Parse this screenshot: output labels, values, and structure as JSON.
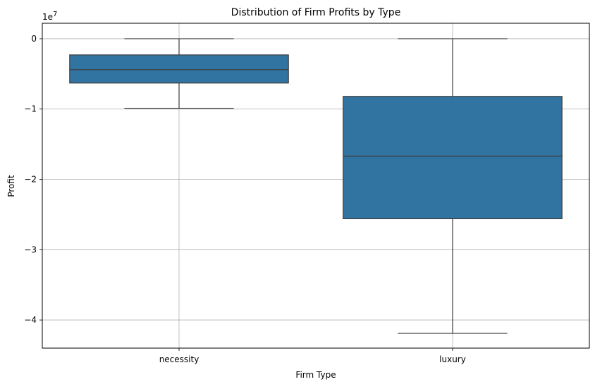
{
  "chart_data": {
    "type": "box",
    "title": "Distribution of Firm Profits by Type",
    "xlabel": "Firm Type",
    "ylabel": "Profit",
    "y_offset_label": "1e7",
    "y_scale": 10000000,
    "ylim": [
      -44000000,
      2200000
    ],
    "y_ticks": [
      0,
      -10000000,
      -20000000,
      -30000000,
      -40000000
    ],
    "y_tick_labels": [
      "0",
      "−1",
      "−2",
      "−3",
      "−4"
    ],
    "categories": [
      "necessity",
      "luxury"
    ],
    "boxes": [
      {
        "category": "necessity",
        "whislo": -9900000,
        "q1": -6300000,
        "med": -4400000,
        "q3": -2300000,
        "whishi": 0
      },
      {
        "category": "luxury",
        "whislo": -41900000,
        "q1": -25600000,
        "med": -16700000,
        "q3": -8200000,
        "whishi": 0
      }
    ],
    "box_color": "#3274a1",
    "line_color": "#3d3d3d",
    "grid": true,
    "grid_color": "#b0b0b0"
  }
}
